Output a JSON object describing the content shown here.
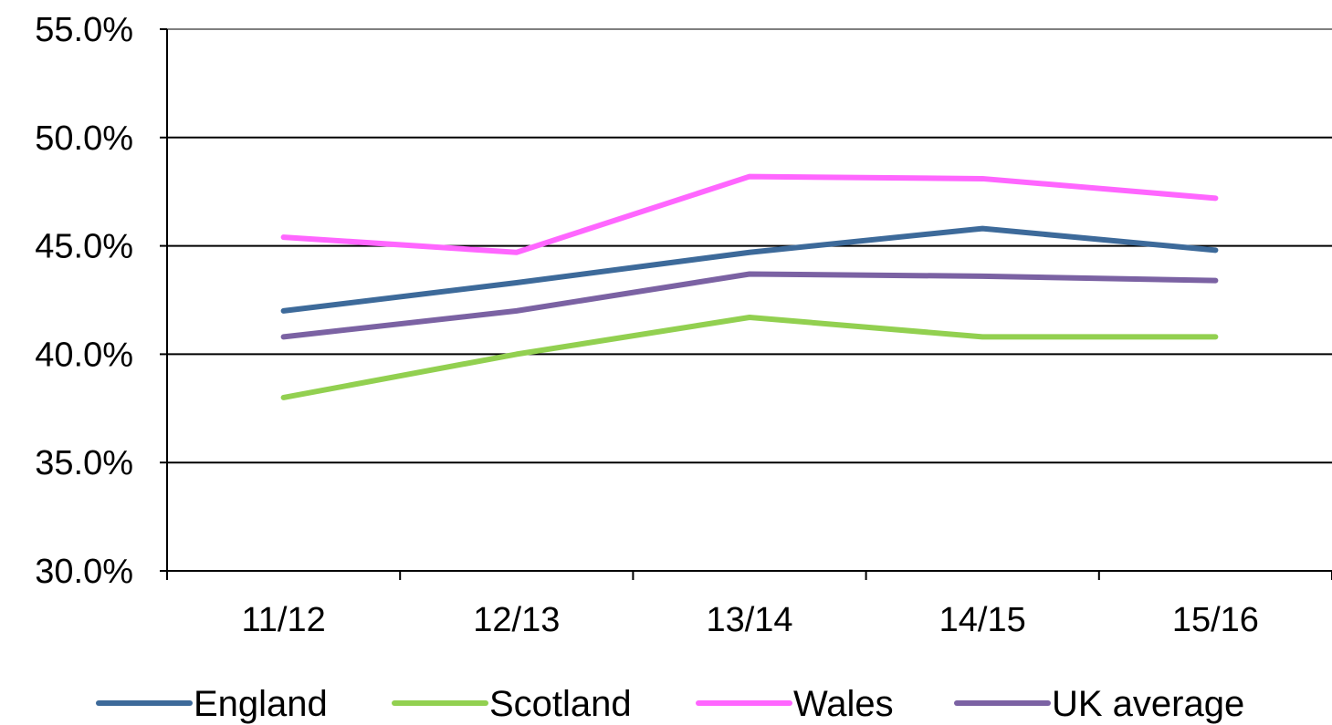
{
  "chart_data": {
    "type": "line",
    "title": "",
    "xlabel": "",
    "ylabel": "",
    "categories": [
      "11/12",
      "12/13",
      "13/14",
      "14/15",
      "15/16"
    ],
    "ylim": [
      0.3,
      0.55
    ],
    "yticks": [
      0.3,
      0.35,
      0.4,
      0.45,
      0.5,
      0.55
    ],
    "ytick_labels": [
      "30.0%",
      "35.0%",
      "40.0%",
      "45.0%",
      "50.0%",
      "55.0%"
    ],
    "grid": true,
    "legend_position": "bottom",
    "series": [
      {
        "name": "England",
        "color": "#3d6a9a",
        "values": [
          0.42,
          0.433,
          0.447,
          0.458,
          0.448
        ]
      },
      {
        "name": "Scotland",
        "color": "#92d050",
        "values": [
          0.38,
          0.4,
          0.417,
          0.408,
          0.408
        ]
      },
      {
        "name": "Wales",
        "color": "#ff66ff",
        "values": [
          0.454,
          0.447,
          0.482,
          0.481,
          0.472
        ]
      },
      {
        "name": "UK average",
        "color": "#7b62a3",
        "values": [
          0.408,
          0.42,
          0.437,
          0.436,
          0.434
        ]
      }
    ]
  }
}
